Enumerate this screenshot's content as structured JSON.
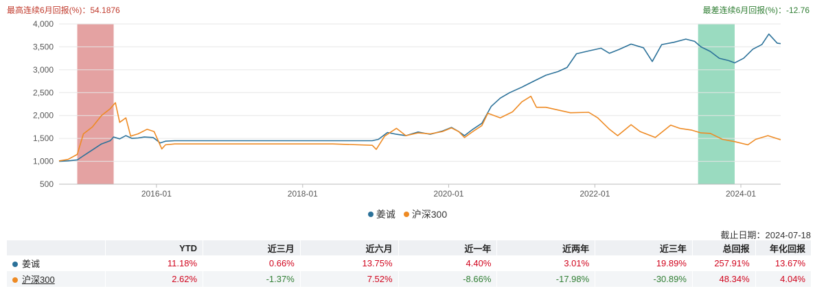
{
  "header": {
    "max_label": "最高连续6月回报(%)：54.1876",
    "min_label": "最差连续6月回报(%)：-12.76"
  },
  "colors": {
    "fund": "#2b7199",
    "index": "#ee8a23",
    "max_band": "#d97b7b",
    "min_band": "#6fcca5",
    "pos": "#d0021b",
    "neg": "#2e7d32"
  },
  "chart_data": {
    "type": "line",
    "ylim": [
      500,
      4000
    ],
    "yticks": [
      500,
      1000,
      1500,
      2000,
      2500,
      3000,
      3500,
      4000
    ],
    "ytick_labels": [
      "500",
      "1,000",
      "1,500",
      "2,000",
      "2,500",
      "3,000",
      "3,500",
      "4,000"
    ],
    "xlim": [
      "2014-09-01",
      "2024-07-18"
    ],
    "xticks": [
      "2016-01-01",
      "2018-01-01",
      "2020-01-01",
      "2022-01-01",
      "2024-01-01"
    ],
    "xtick_labels": [
      "2016-01",
      "2018-01",
      "2020-01",
      "2022-01",
      "2024-01"
    ],
    "bands": [
      {
        "name": "max-6m-band",
        "start": "2014-12-01",
        "end": "2015-06-01",
        "color": "#d97b7b"
      },
      {
        "name": "min-6m-band",
        "start": "2023-06-01",
        "end": "2023-12-01",
        "color": "#6fcca5"
      }
    ],
    "series": [
      {
        "name": "姜诚",
        "color": "#2b7199",
        "points": [
          [
            "2014-09-01",
            1000
          ],
          [
            "2014-10-15",
            1010
          ],
          [
            "2014-12-01",
            1030
          ],
          [
            "2015-01-01",
            1120
          ],
          [
            "2015-02-15",
            1250
          ],
          [
            "2015-04-01",
            1380
          ],
          [
            "2015-05-15",
            1450
          ],
          [
            "2015-06-01",
            1530
          ],
          [
            "2015-07-01",
            1490
          ],
          [
            "2015-08-01",
            1560
          ],
          [
            "2015-09-01",
            1500
          ],
          [
            "2015-10-01",
            1510
          ],
          [
            "2015-11-01",
            1530
          ],
          [
            "2015-12-15",
            1520
          ],
          [
            "2016-01-20",
            1400
          ],
          [
            "2016-02-15",
            1440
          ],
          [
            "2016-04-01",
            1450
          ],
          [
            "2017-06-01",
            1450
          ],
          [
            "2018-06-01",
            1450
          ],
          [
            "2018-12-15",
            1450
          ],
          [
            "2019-01-15",
            1480
          ],
          [
            "2019-03-01",
            1630
          ],
          [
            "2019-04-15",
            1590
          ],
          [
            "2019-06-01",
            1560
          ],
          [
            "2019-08-01",
            1640
          ],
          [
            "2019-10-01",
            1590
          ],
          [
            "2019-12-01",
            1660
          ],
          [
            "2020-01-15",
            1740
          ],
          [
            "2020-02-20",
            1650
          ],
          [
            "2020-03-20",
            1560
          ],
          [
            "2020-05-01",
            1700
          ],
          [
            "2020-06-15",
            1830
          ],
          [
            "2020-08-01",
            2200
          ],
          [
            "2020-09-15",
            2380
          ],
          [
            "2020-11-01",
            2500
          ],
          [
            "2021-01-01",
            2620
          ],
          [
            "2021-03-01",
            2750
          ],
          [
            "2021-05-01",
            2880
          ],
          [
            "2021-07-01",
            2960
          ],
          [
            "2021-08-15",
            3050
          ],
          [
            "2021-10-01",
            3350
          ],
          [
            "2021-12-01",
            3410
          ],
          [
            "2022-02-01",
            3470
          ],
          [
            "2022-03-15",
            3360
          ],
          [
            "2022-05-01",
            3440
          ],
          [
            "2022-07-01",
            3560
          ],
          [
            "2022-09-01",
            3480
          ],
          [
            "2022-10-15",
            3180
          ],
          [
            "2022-12-01",
            3550
          ],
          [
            "2023-02-01",
            3600
          ],
          [
            "2023-04-01",
            3670
          ],
          [
            "2023-05-15",
            3620
          ],
          [
            "2023-06-15",
            3500
          ],
          [
            "2023-08-01",
            3400
          ],
          [
            "2023-09-15",
            3250
          ],
          [
            "2023-11-01",
            3200
          ],
          [
            "2023-12-01",
            3150
          ],
          [
            "2024-01-15",
            3250
          ],
          [
            "2024-03-01",
            3450
          ],
          [
            "2024-04-15",
            3550
          ],
          [
            "2024-05-20",
            3780
          ],
          [
            "2024-07-01",
            3580
          ],
          [
            "2024-07-18",
            3570
          ]
        ]
      },
      {
        "name": "沪深300",
        "color": "#ee8a23",
        "points": [
          [
            "2014-09-01",
            1010
          ],
          [
            "2014-10-15",
            1040
          ],
          [
            "2014-12-01",
            1150
          ],
          [
            "2015-01-01",
            1600
          ],
          [
            "2015-02-15",
            1750
          ],
          [
            "2015-04-01",
            2000
          ],
          [
            "2015-05-15",
            2150
          ],
          [
            "2015-06-10",
            2280
          ],
          [
            "2015-07-01",
            1850
          ],
          [
            "2015-08-01",
            1950
          ],
          [
            "2015-08-25",
            1550
          ],
          [
            "2015-10-01",
            1600
          ],
          [
            "2015-11-15",
            1700
          ],
          [
            "2015-12-20",
            1650
          ],
          [
            "2016-01-28",
            1270
          ],
          [
            "2016-02-15",
            1360
          ],
          [
            "2016-04-01",
            1380
          ],
          [
            "2017-06-01",
            1380
          ],
          [
            "2018-06-01",
            1380
          ],
          [
            "2018-12-15",
            1350
          ],
          [
            "2019-01-04",
            1260
          ],
          [
            "2019-02-15",
            1550
          ],
          [
            "2019-04-15",
            1720
          ],
          [
            "2019-06-01",
            1560
          ],
          [
            "2019-08-01",
            1620
          ],
          [
            "2019-10-01",
            1600
          ],
          [
            "2019-12-01",
            1650
          ],
          [
            "2020-01-15",
            1730
          ],
          [
            "2020-02-20",
            1650
          ],
          [
            "2020-03-20",
            1520
          ],
          [
            "2020-05-01",
            1650
          ],
          [
            "2020-06-15",
            1780
          ],
          [
            "2020-07-15",
            2050
          ],
          [
            "2020-09-15",
            1950
          ],
          [
            "2020-11-15",
            2080
          ],
          [
            "2021-01-01",
            2300
          ],
          [
            "2021-02-15",
            2420
          ],
          [
            "2021-03-15",
            2180
          ],
          [
            "2021-05-01",
            2180
          ],
          [
            "2021-07-01",
            2120
          ],
          [
            "2021-09-01",
            2060
          ],
          [
            "2021-12-01",
            2070
          ],
          [
            "2022-01-15",
            1950
          ],
          [
            "2022-03-15",
            1700
          ],
          [
            "2022-04-25",
            1560
          ],
          [
            "2022-07-01",
            1800
          ],
          [
            "2022-08-15",
            1650
          ],
          [
            "2022-10-30",
            1520
          ],
          [
            "2023-01-15",
            1790
          ],
          [
            "2023-03-01",
            1720
          ],
          [
            "2023-05-01",
            1680
          ],
          [
            "2023-06-15",
            1620
          ],
          [
            "2023-08-01",
            1610
          ],
          [
            "2023-10-01",
            1480
          ],
          [
            "2023-12-01",
            1430
          ],
          [
            "2024-02-05",
            1360
          ],
          [
            "2024-03-15",
            1480
          ],
          [
            "2024-05-15",
            1560
          ],
          [
            "2024-07-18",
            1470
          ]
        ]
      }
    ]
  },
  "legend": {
    "items": [
      "姜诚",
      "沪深300"
    ]
  },
  "as_of": "截止日期：2024-07-18",
  "table": {
    "headers": [
      "",
      "YTD",
      "近三月",
      "近六月",
      "近一年",
      "近两年",
      "近三年",
      "总回报",
      "年化回报"
    ],
    "rows": [
      {
        "name": "姜诚",
        "values": [
          "11.18%",
          "0.66%",
          "13.75%",
          "4.40%",
          "3.01%",
          "19.89%",
          "257.91%",
          "13.67%"
        ]
      },
      {
        "name": "沪深300",
        "values": [
          "2.62%",
          "-1.37%",
          "7.52%",
          "-8.66%",
          "-17.98%",
          "-30.89%",
          "48.34%",
          "4.04%"
        ]
      }
    ]
  }
}
